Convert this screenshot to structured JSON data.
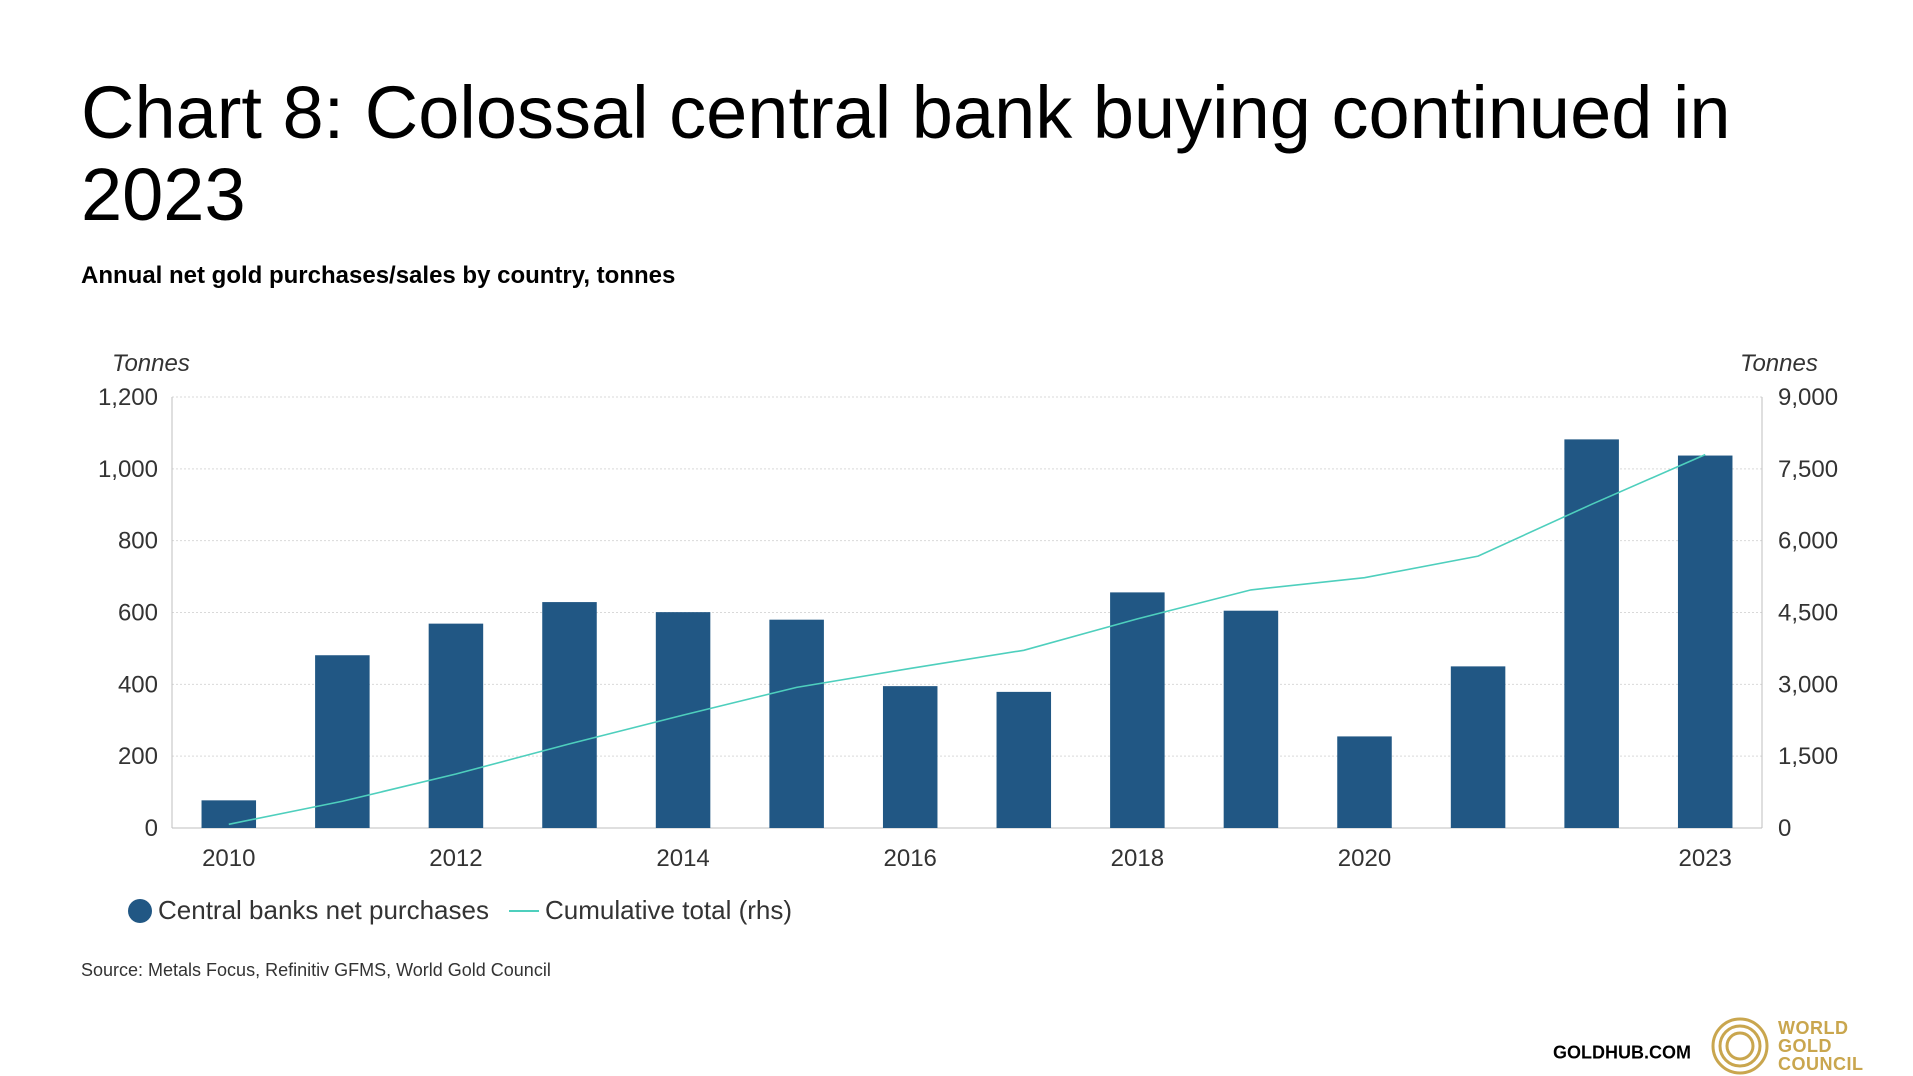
{
  "title": "Chart 8: Colossal central bank buying continued in 2023",
  "subtitle": "Annual net gold purchases/sales by country, tonnes",
  "axis_unit_left": "Tonnes",
  "axis_unit_right": "Tonnes",
  "legend": {
    "bars": "Central banks net purchases",
    "line": "Cumulative total (rhs)"
  },
  "source": "Source: Metals Focus, Refinitiv GFMS, World Gold Council",
  "footer": {
    "site": "GOLDHUB.COM",
    "logo_lines": [
      "WORLD",
      "GOLD",
      "COUNCIL"
    ]
  },
  "colors": {
    "bar": "#215784",
    "line": "#4ecfbd",
    "grid": "#d9d9d9",
    "logo": "#c9a64e"
  },
  "chart_data": {
    "type": "bar",
    "categories": [
      "2010",
      "2011",
      "2012",
      "2013",
      "2014",
      "2015",
      "2016",
      "2017",
      "2018",
      "2019",
      "2020",
      "2021",
      "2022",
      "2023"
    ],
    "x_tick_labels": [
      "2010",
      "",
      "2012",
      "",
      "2014",
      "",
      "2016",
      "",
      "2018",
      "",
      "2020",
      "",
      "",
      "2023"
    ],
    "series": [
      {
        "name": "Central banks net purchases",
        "type": "bar",
        "axis": "left",
        "values": [
          77,
          481,
          569,
          629,
          601,
          580,
          395,
          379,
          656,
          605,
          255,
          450,
          1082,
          1037
        ]
      },
      {
        "name": "Cumulative total (rhs)",
        "type": "line",
        "axis": "right",
        "values": [
          77,
          558,
          1127,
          1756,
          2357,
          2937,
          3332,
          3711,
          4367,
          4972,
          5227,
          5677,
          6759,
          7796
        ]
      }
    ],
    "ylim_left": [
      0,
      1200
    ],
    "yticks_left": [
      "0",
      "200",
      "400",
      "600",
      "800",
      "1,000",
      "1,200"
    ],
    "ylim_right": [
      0,
      9000
    ],
    "yticks_right": [
      "0",
      "1,500",
      "3,000",
      "4,500",
      "6,000",
      "7,500",
      "9,000"
    ],
    "ylabel_left": "Tonnes",
    "ylabel_right": "Tonnes",
    "grid": true,
    "legend_position": "bottom-left"
  }
}
